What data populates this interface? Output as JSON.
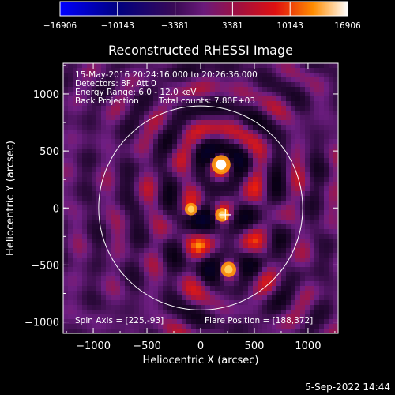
{
  "chart_data": {
    "type": "heatmap",
    "title": "Reconstructed RHESSI Image",
    "xlabel": "Heliocentric X (arcsec)",
    "ylabel": "Heliocentric Y (arcsec)",
    "xlim": [
      -1280,
      1280
    ],
    "ylim": [
      -1100,
      1270
    ],
    "x_ticks": [
      -1000,
      -500,
      0,
      500,
      1000
    ],
    "x_tick_labels": [
      "−1000",
      "−500",
      "0",
      "500",
      "1000"
    ],
    "y_ticks": [
      -1000,
      -500,
      0,
      500,
      1000
    ],
    "y_tick_labels": [
      "−1000",
      "−500",
      "0",
      "500",
      "1000"
    ],
    "colorbar": {
      "min": -16906,
      "max": 16906,
      "tick_labels": [
        "−16906",
        "−10143",
        "−3381",
        "3381",
        "10143",
        "16906"
      ]
    },
    "solar_limb_radius_arcsec": 950,
    "flare_center": [
      188,
      372
    ],
    "sources": [
      {
        "x": 190,
        "y": 380,
        "peak": 16906
      },
      {
        "x": 260,
        "y": -540,
        "peak": 12500
      },
      {
        "x": -90,
        "y": -10,
        "peak": 9000
      },
      {
        "x": 200,
        "y": -60,
        "peak": 10800
      }
    ],
    "annotations": {
      "time_range": "15-May-2016 20:24:16.000 to 20:26:36.000",
      "detectors": "Detectors: 8F, Att 0",
      "energy_range": "Energy Range: 6.0 - 12.0 keV",
      "method": "Back Projection",
      "total_counts": "Total counts: 7.80E+03",
      "spin_axis": "Spin Axis = [225,-93]",
      "flare_position": "Flare Position = [188,372]"
    },
    "timestamp": "5-Sep-2022 14:44"
  }
}
